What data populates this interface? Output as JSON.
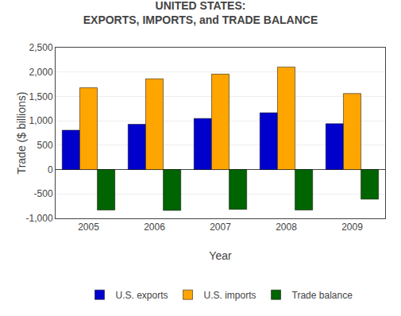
{
  "chart_data": {
    "type": "bar",
    "title": "UNITED STATES:",
    "subtitle": "EXPORTS, IMPORTS, and TRADE BALANCE",
    "x_label": "Year",
    "y_label": "Trade ($ billions)",
    "categories": [
      "2005",
      "2006",
      "2007",
      "2008",
      "2009"
    ],
    "series": [
      {
        "name": "U.S. exports",
        "color": "#0000CD",
        "values": [
          807,
          930,
          1048,
          1165,
          940
        ]
      },
      {
        "name": "U.S. imports",
        "color": "#FFA500",
        "values": [
          1677,
          1861,
          1957,
          2103,
          1559
        ]
      },
      {
        "name": "Trade balance",
        "color": "#006400",
        "values": [
          -830,
          -838,
          -815,
          -830,
          -607
        ]
      }
    ],
    "ylim": [
      -1000,
      2500
    ],
    "yticks": [
      {
        "value": -1000,
        "label": "-1,000"
      },
      -500,
      0,
      500,
      {
        "value": 1000,
        "label": "1,000"
      },
      {
        "value": 1500,
        "label": "1,500"
      },
      {
        "value": 2000,
        "label": "2,000"
      },
      {
        "value": 2500,
        "label": "2,500"
      }
    ],
    "grid": true,
    "legend": "below"
  }
}
